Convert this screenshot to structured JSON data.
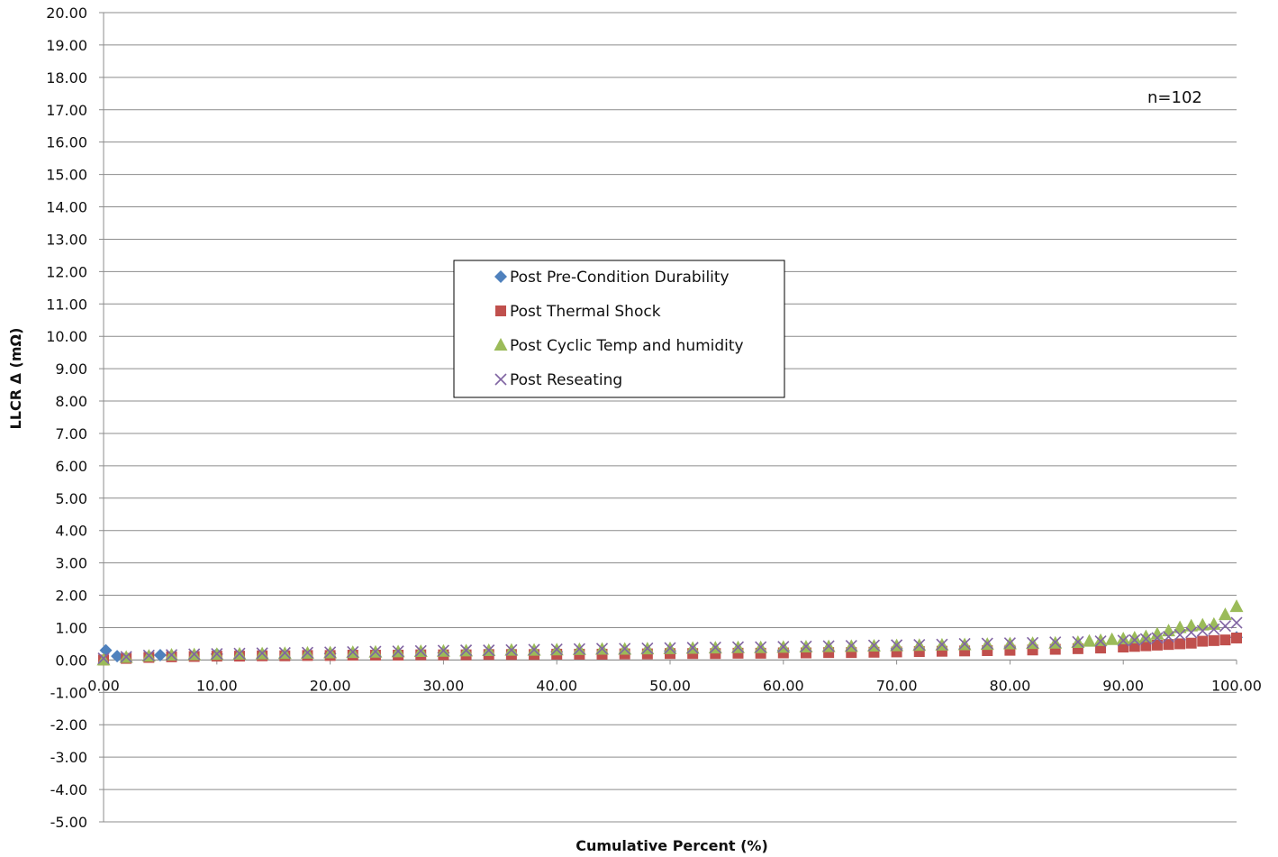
{
  "chart_data": {
    "type": "scatter",
    "annotation": "n=102",
    "xlabel": "Cumulative Percent (%)",
    "ylabel": "LLCR Δ (mΩ)",
    "xlim": [
      0,
      100
    ],
    "ylim": [
      -5,
      20
    ],
    "x_ticks": [
      "0.00",
      "10.00",
      "20.00",
      "30.00",
      "40.00",
      "50.00",
      "60.00",
      "70.00",
      "80.00",
      "90.00",
      "100.00"
    ],
    "y_ticks": [
      "20.00",
      "19.00",
      "18.00",
      "17.00",
      "16.00",
      "15.00",
      "14.00",
      "13.00",
      "12.00",
      "11.00",
      "10.00",
      "9.00",
      "8.00",
      "7.00",
      "6.00",
      "5.00",
      "4.00",
      "3.00",
      "2.00",
      "1.00",
      "0.00",
      "-1.00",
      "-2.00",
      "-3.00",
      "-4.00",
      "-5.00"
    ],
    "grid": true,
    "legend_position": "center-left",
    "series": [
      {
        "name": "Post Pre-Condition Durability",
        "marker": "diamond",
        "color": "#4F81BD",
        "x": [
          0.2,
          1.2,
          5,
          10,
          20,
          30,
          40,
          50,
          60,
          70,
          80,
          90,
          100
        ],
        "y": [
          0.3,
          0.12,
          0.15,
          0.18,
          0.2,
          0.22,
          0.25,
          0.28,
          0.3,
          0.35,
          0.4,
          0.5,
          0.7
        ]
      },
      {
        "name": "Post Thermal Shock",
        "marker": "square",
        "color": "#C0504D",
        "x": [
          0,
          2,
          4,
          6,
          8,
          10,
          12,
          14,
          16,
          18,
          20,
          22,
          24,
          26,
          28,
          30,
          32,
          34,
          36,
          38,
          40,
          42,
          44,
          46,
          48,
          50,
          52,
          54,
          56,
          58,
          60,
          62,
          64,
          66,
          68,
          70,
          72,
          74,
          76,
          78,
          80,
          82,
          84,
          86,
          88,
          90,
          91,
          92,
          93,
          94,
          95,
          96,
          97,
          98,
          99,
          100
        ],
        "y": [
          0.0,
          0.05,
          0.08,
          0.1,
          0.11,
          0.12,
          0.12,
          0.13,
          0.13,
          0.14,
          0.14,
          0.15,
          0.15,
          0.15,
          0.16,
          0.16,
          0.16,
          0.17,
          0.17,
          0.17,
          0.18,
          0.18,
          0.18,
          0.19,
          0.19,
          0.2,
          0.2,
          0.2,
          0.21,
          0.21,
          0.22,
          0.22,
          0.23,
          0.23,
          0.24,
          0.25,
          0.26,
          0.27,
          0.28,
          0.29,
          0.3,
          0.31,
          0.33,
          0.35,
          0.37,
          0.4,
          0.42,
          0.44,
          0.46,
          0.48,
          0.5,
          0.52,
          0.58,
          0.6,
          0.62,
          0.68
        ]
      },
      {
        "name": "Post Cyclic Temp and humidity",
        "marker": "triangle",
        "color": "#9BBB59",
        "x": [
          0,
          2,
          4,
          6,
          8,
          10,
          12,
          14,
          16,
          18,
          20,
          22,
          24,
          26,
          28,
          30,
          32,
          34,
          36,
          38,
          40,
          42,
          44,
          46,
          48,
          50,
          52,
          54,
          56,
          58,
          60,
          62,
          64,
          66,
          68,
          70,
          72,
          74,
          76,
          78,
          80,
          82,
          84,
          86,
          87,
          88,
          89,
          90,
          91,
          92,
          93,
          94,
          95,
          96,
          97,
          98,
          99,
          100
        ],
        "y": [
          0.0,
          0.08,
          0.12,
          0.15,
          0.16,
          0.17,
          0.18,
          0.19,
          0.2,
          0.21,
          0.22,
          0.23,
          0.24,
          0.25,
          0.26,
          0.27,
          0.28,
          0.29,
          0.3,
          0.3,
          0.31,
          0.32,
          0.33,
          0.33,
          0.34,
          0.35,
          0.36,
          0.37,
          0.38,
          0.38,
          0.39,
          0.4,
          0.41,
          0.42,
          0.43,
          0.44,
          0.45,
          0.46,
          0.47,
          0.48,
          0.5,
          0.51,
          0.52,
          0.54,
          0.58,
          0.6,
          0.63,
          0.65,
          0.68,
          0.72,
          0.8,
          0.9,
          1.0,
          1.05,
          1.08,
          1.1,
          1.4,
          1.65
        ]
      },
      {
        "name": "Post Reseating",
        "marker": "x",
        "color": "#8064A2",
        "x": [
          0,
          2,
          4,
          6,
          8,
          10,
          12,
          14,
          16,
          18,
          20,
          22,
          24,
          26,
          28,
          30,
          32,
          34,
          36,
          38,
          40,
          42,
          44,
          46,
          48,
          50,
          52,
          54,
          56,
          58,
          60,
          62,
          64,
          66,
          68,
          70,
          72,
          74,
          76,
          78,
          80,
          82,
          84,
          86,
          88,
          90,
          91,
          92,
          93,
          94,
          95,
          96,
          97,
          98,
          99,
          100
        ],
        "y": [
          0.05,
          0.1,
          0.14,
          0.16,
          0.18,
          0.19,
          0.2,
          0.21,
          0.22,
          0.23,
          0.24,
          0.25,
          0.26,
          0.27,
          0.28,
          0.29,
          0.3,
          0.3,
          0.31,
          0.32,
          0.33,
          0.34,
          0.35,
          0.35,
          0.36,
          0.37,
          0.38,
          0.39,
          0.4,
          0.4,
          0.41,
          0.42,
          0.43,
          0.44,
          0.45,
          0.46,
          0.47,
          0.48,
          0.5,
          0.51,
          0.52,
          0.53,
          0.55,
          0.56,
          0.58,
          0.6,
          0.62,
          0.65,
          0.68,
          0.72,
          0.78,
          0.85,
          0.9,
          0.95,
          1.05,
          1.15
        ]
      }
    ]
  }
}
